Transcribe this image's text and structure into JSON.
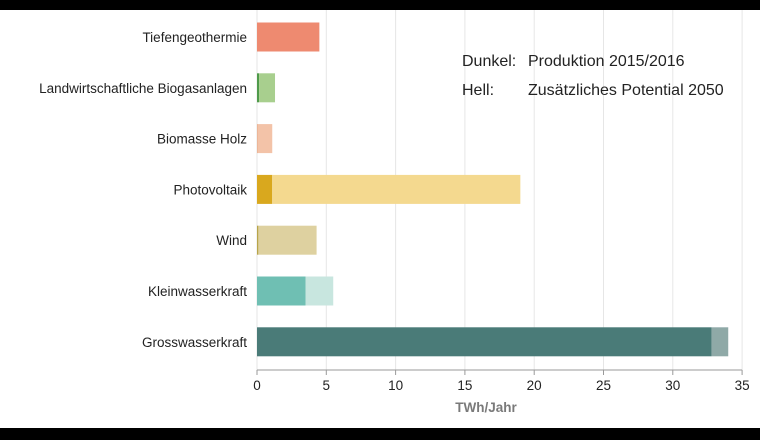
{
  "chart_data": {
    "type": "bar",
    "orientation": "horizontal",
    "stacked": true,
    "categories": [
      "Tiefengeothermie",
      "Landwirtschaftliche Biogasanlagen",
      "Biomasse Holz",
      "Photovoltaik",
      "Wind",
      "Kleinwasserkraft",
      "Grosswasserkraft"
    ],
    "series": [
      {
        "name": "Produktion 2015/2016",
        "values": [
          0,
          0.15,
          0.05,
          1.1,
          0.1,
          3.5,
          32.8
        ],
        "colors": [
          "#ee8a70",
          "#4f9a4a",
          "#e6a07a",
          "#d9a81e",
          "#b8a54a",
          "#6fbfb3",
          "#4a7b78"
        ]
      },
      {
        "name": "Zusätzliches Potential 2050",
        "values": [
          4.5,
          1.15,
          1.05,
          17.9,
          4.2,
          2.0,
          1.2
        ],
        "colors": [
          "#ee8a70",
          "#a8cf8e",
          "#f3c3a8",
          "#f4d98f",
          "#ded1a0",
          "#c8e6df",
          "#8fa9a7"
        ]
      }
    ],
    "legend": [
      {
        "key": "Dunkel:",
        "text": "Produktion 2015/2016"
      },
      {
        "key": "Hell:",
        "text": "Zusätzliches Potential 2050"
      }
    ],
    "legend_position": "top-right",
    "xlim": [
      0,
      35
    ],
    "xticks": [
      0,
      5,
      10,
      15,
      20,
      25,
      30,
      35
    ],
    "xlabel": "TWh/Jahr",
    "ylabel": "",
    "title": "",
    "grid": "vertical"
  }
}
